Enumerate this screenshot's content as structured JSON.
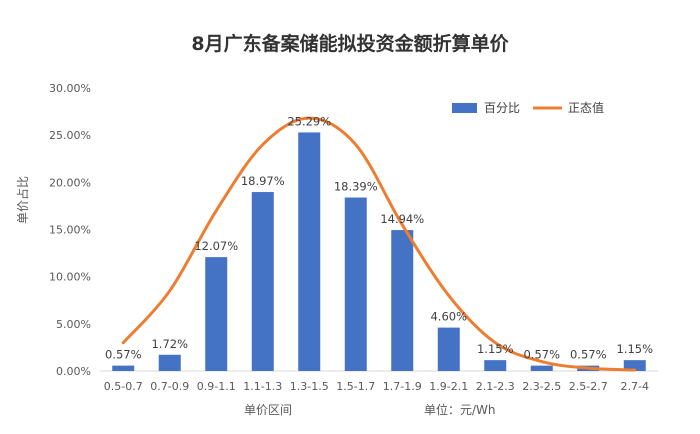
{
  "chart_data": {
    "type": "bar",
    "title": "8月广东备案储能拟投资金额折算单价",
    "xlabel": "单价区间",
    "ylabel": "单价占比",
    "unit_note": "单位：元/Wh",
    "categories": [
      "0.5-0.7",
      "0.7-0.9",
      "0.9-1.1",
      "1.1-1.3",
      "1.3-1.5",
      "1.5-1.7",
      "1.7-1.9",
      "1.9-2.1",
      "2.1-2.3",
      "2.3-2.5",
      "2.5-2.7",
      "2.7-4"
    ],
    "y_tick_labels": [
      "0.00%",
      "5.00%",
      "10.00%",
      "15.00%",
      "20.00%",
      "25.00%",
      "30.00%"
    ],
    "ylim": [
      0,
      30
    ],
    "grid": false,
    "legend_position": "top-right",
    "series": [
      {
        "name": "百分比",
        "type": "bar",
        "color": "#4472C4",
        "values": [
          0.57,
          1.72,
          12.07,
          18.97,
          25.29,
          18.39,
          14.94,
          4.6,
          1.15,
          0.57,
          0.57,
          1.15
        ],
        "labels": [
          "0.57%",
          "1.72%",
          "12.07%",
          "18.97%",
          "25.29%",
          "18.39%",
          "14.94%",
          "4.60%",
          "1.15%",
          "0.57%",
          "0.57%",
          "1.15%"
        ]
      },
      {
        "name": "正态值",
        "type": "line",
        "smooth": true,
        "color": "#ED7D31",
        "values": [
          3.0,
          8.5,
          17.0,
          24.0,
          26.8,
          24.0,
          15.5,
          8.0,
          3.0,
          1.0,
          0.3,
          0.1
        ]
      }
    ]
  }
}
